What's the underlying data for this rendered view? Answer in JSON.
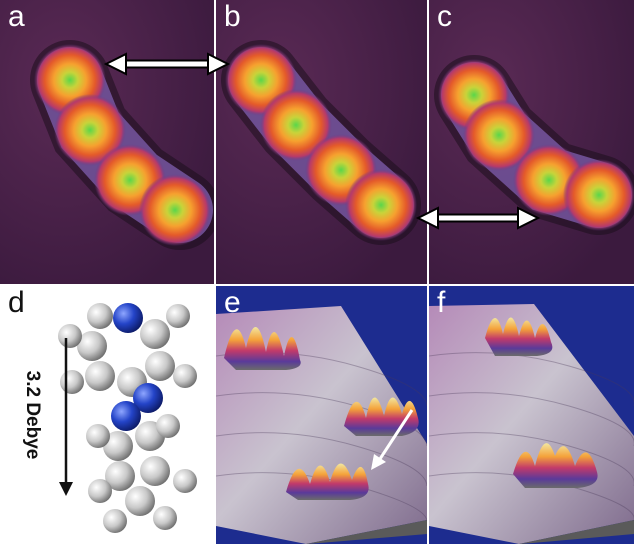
{
  "panels": {
    "a": {
      "label": "a"
    },
    "b": {
      "label": "b"
    },
    "c": {
      "label": "c"
    },
    "d": {
      "label": "d",
      "dipole_text": "3.2 Debye"
    },
    "e": {
      "label": "e"
    },
    "f": {
      "label": "f"
    }
  },
  "colors": {
    "stm_background": "#4a1f48",
    "lobe_outer": "#e8732c",
    "lobe_center": "#5ad64a",
    "surface_3d_background": "#1d2c8f",
    "nitrogen_atom": "#1f3fbf",
    "carbon_atom": "#cfcfcf"
  }
}
